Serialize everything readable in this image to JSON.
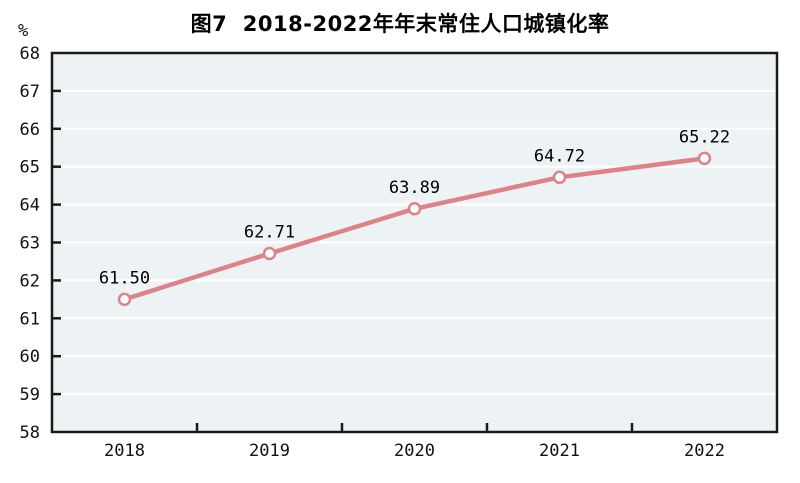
{
  "figure": {
    "title": "图7  2018-2022年年末常住人口城镇化率",
    "unit_label": "%"
  },
  "colors": {
    "background": "#ffffff",
    "plot_background": "#edf3f5",
    "grid_line": "#ffffff",
    "axis": "#1a1a1a",
    "series_line": "#dd8286",
    "marker_fill": "#ffffff",
    "marker_stroke": "#dd8286",
    "tick_text": "#111111",
    "data_label_text": "#000000"
  },
  "chart_data": {
    "type": "line",
    "title": "图7  2018-2022年年末常住人口城镇化率",
    "categories": [
      "2018",
      "2019",
      "2020",
      "2021",
      "2022"
    ],
    "values": [
      61.5,
      62.71,
      63.89,
      64.72,
      65.22
    ],
    "data_labels": [
      "61.50",
      "62.71",
      "63.89",
      "64.72",
      "65.22"
    ],
    "xlabel": "",
    "ylabel": "%",
    "ylim": [
      58,
      68
    ],
    "ytick_step": 1,
    "yticks": [
      58,
      59,
      60,
      61,
      62,
      63,
      64,
      65,
      66,
      67,
      68
    ],
    "grid": "horizontal",
    "legend_position": "none"
  }
}
